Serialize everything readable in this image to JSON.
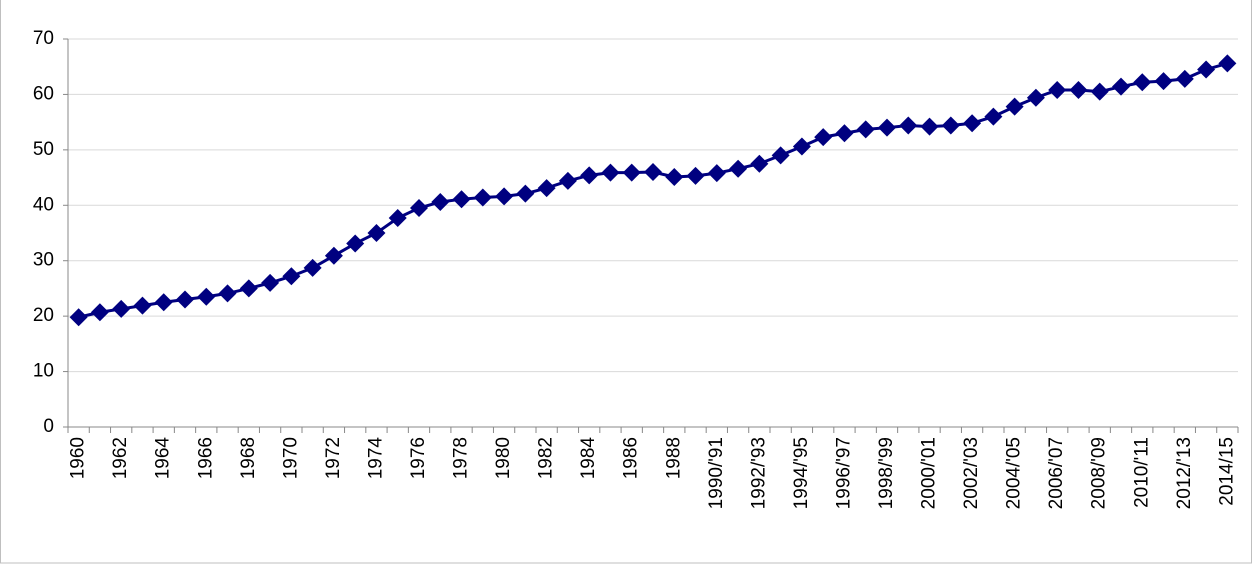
{
  "chart_data": {
    "type": "line",
    "categories": [
      "1960",
      null,
      "1962",
      null,
      "1964",
      null,
      "1966",
      null,
      "1968",
      null,
      "1970",
      null,
      "1972",
      null,
      "1974",
      null,
      "1976",
      null,
      "1978",
      null,
      "1980",
      null,
      "1982",
      null,
      "1984",
      null,
      "1986",
      null,
      "1988",
      null,
      "1990/'91",
      null,
      "1992/'93",
      null,
      "1994/'95",
      null,
      "1996/'97",
      null,
      "1998/'99",
      null,
      "2000/'01",
      null,
      "2002/'03",
      null,
      "2004/'05",
      null,
      "2006/'07",
      null,
      "2008/'09",
      null,
      "2010/'11",
      null,
      "2012/'13",
      null,
      "2014/15"
    ],
    "series": [
      {
        "color": "#000080",
        "values": [
          19.8,
          20.7,
          21.3,
          21.9,
          22.5,
          23.0,
          23.5,
          24.1,
          25.0,
          26.0,
          27.2,
          28.7,
          30.9,
          33.1,
          35.0,
          37.7,
          39.5,
          40.6,
          41.1,
          41.4,
          41.6,
          42.1,
          43.1,
          44.4,
          45.4,
          45.9,
          45.9,
          46.0,
          45.1,
          45.3,
          45.8,
          46.6,
          47.5,
          49.0,
          50.6,
          52.3,
          53.0,
          53.7,
          54.0,
          54.4,
          54.2,
          54.4,
          54.8,
          56.0,
          57.8,
          59.4,
          60.8,
          60.8,
          60.5,
          61.4,
          62.2,
          62.4,
          62.8,
          64.5,
          65.6
        ]
      }
    ],
    "ylim": [
      0,
      70
    ],
    "yticks": [
      0,
      10,
      20,
      30,
      40,
      50,
      60,
      70
    ],
    "grid": true
  }
}
